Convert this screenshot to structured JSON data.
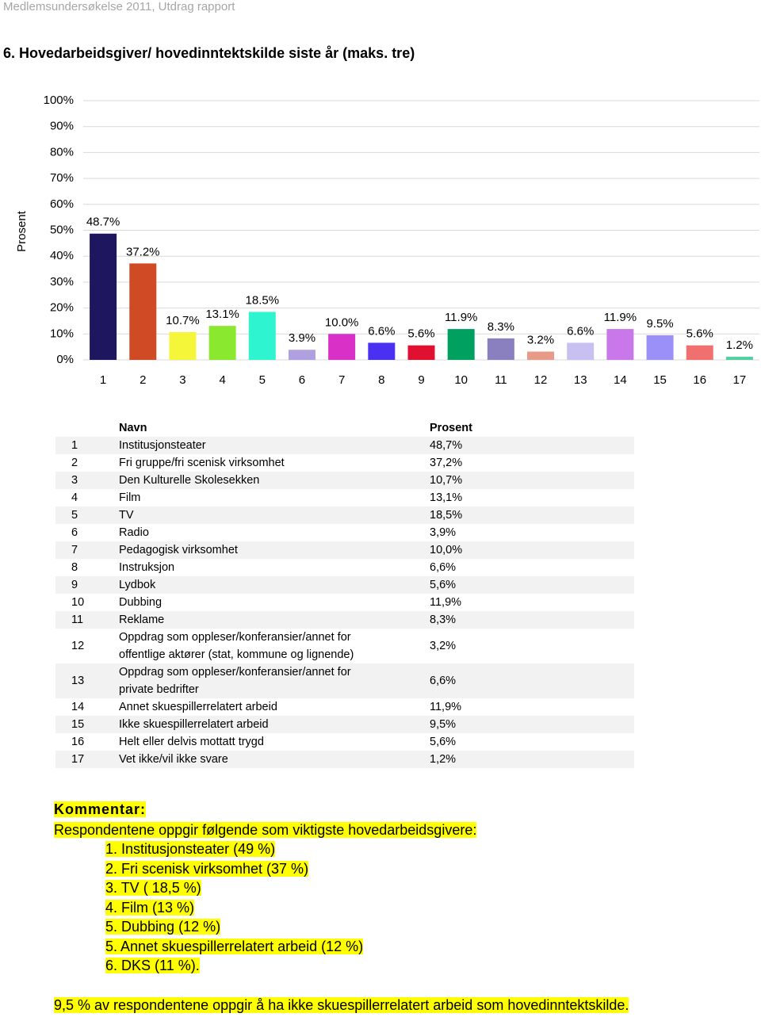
{
  "header": {
    "running_title": "Medlemsundersøkelse 2011, Utdrag rapport",
    "title": "6. Hovedarbeidsgiver/ hovedinntektskilde siste år (maks. tre)"
  },
  "chart_data": {
    "type": "bar",
    "y_label": "Prosent",
    "categories": [
      "1",
      "2",
      "3",
      "4",
      "5",
      "6",
      "7",
      "8",
      "9",
      "10",
      "11",
      "12",
      "13",
      "14",
      "15",
      "16",
      "17"
    ],
    "values": [
      48.7,
      37.2,
      10.7,
      13.1,
      18.5,
      3.9,
      10.0,
      6.6,
      5.6,
      11.9,
      8.3,
      3.2,
      6.6,
      11.9,
      9.5,
      5.6,
      1.2
    ],
    "value_labels": [
      "48.7%",
      "37.2%",
      "10.7%",
      "13.1%",
      "18.5%",
      "3.9%",
      "10.0%",
      "6.6%",
      "5.6%",
      "11.9%",
      "8.3%",
      "3.2%",
      "6.6%",
      "11.9%",
      "9.5%",
      "5.6%",
      "1.2%"
    ],
    "colors": [
      "#1f1660",
      "#d04a25",
      "#f5f53a",
      "#8ae82e",
      "#2ef5d0",
      "#b0a0e0",
      "#d930c8",
      "#4a30f0",
      "#e01030",
      "#00a060",
      "#8a80c0",
      "#e89a88",
      "#c8c0f0",
      "#c878e8",
      "#9a90f8",
      "#f07070",
      "#50d0a0"
    ],
    "ylim": [
      0,
      100
    ],
    "yticks": [
      {
        "value": 0,
        "label": "0%"
      },
      {
        "value": 10,
        "label": "10%"
      },
      {
        "value": 20,
        "label": "20%"
      },
      {
        "value": 30,
        "label": "30%"
      },
      {
        "value": 40,
        "label": "40%"
      },
      {
        "value": 50,
        "label": "50%"
      },
      {
        "value": 60,
        "label": "60%"
      },
      {
        "value": 70,
        "label": "70%"
      },
      {
        "value": 80,
        "label": "80%"
      },
      {
        "value": 90,
        "label": "90%"
      },
      {
        "value": 100,
        "label": "100%"
      }
    ],
    "grid": true
  },
  "table": {
    "header": [
      "Navn",
      "Prosent"
    ],
    "rows": [
      [
        "1",
        "Institusjonsteater",
        "48,7%"
      ],
      [
        "2",
        "Fri gruppe/fri scenisk virksomhet",
        "37,2%"
      ],
      [
        "3",
        "Den Kulturelle Skolesekken",
        "10,7%"
      ],
      [
        "4",
        "Film",
        "13,1%"
      ],
      [
        "5",
        "TV",
        "18,5%"
      ],
      [
        "6",
        "Radio",
        "3,9%"
      ],
      [
        "7",
        "Pedagogisk virksomhet",
        "10,0%"
      ],
      [
        "8",
        "Instruksjon",
        "6,6%"
      ],
      [
        "9",
        "Lydbok",
        "5,6%"
      ],
      [
        "10",
        "Dubbing",
        "11,9%"
      ],
      [
        "11",
        "Reklame",
        "8,3%"
      ],
      [
        "12",
        "Oppdrag som oppleser/konferansier/annet for offentlige aktører (stat, kommune og lignende)",
        "3,2%"
      ],
      [
        "13",
        "Oppdrag som oppleser/konferansier/annet for private bedrifter",
        "6,6%"
      ],
      [
        "14",
        "Annet skuespillerrelatert arbeid",
        "11,9%"
      ],
      [
        "15",
        "Ikke skuespillerrelatert arbeid",
        "9,5%"
      ],
      [
        "16",
        "Helt eller delvis mottatt trygd",
        "5,6%"
      ],
      [
        "17",
        "Vet ikke/vil ikke svare",
        "1,2%"
      ]
    ]
  },
  "comment": {
    "heading": "Kommentar:",
    "intro": "Respondentene oppgir følgende som viktigste hovedarbeidsgivere:",
    "items": [
      "1. Institusjonsteater (49 %)",
      "2. Fri scenisk virksomhet (37 %)",
      "3. TV ( 18,5 %)",
      "4. Film (13 %)",
      "5. Dubbing (12 %)",
      "5. Annet skuespillerrelatert arbeid (12 %)",
      "6. DKS (11 %)."
    ],
    "closing": "9,5 % av respondentene oppgir å ha ikke skuespillerrelatert arbeid som hovedinntektskilde."
  }
}
